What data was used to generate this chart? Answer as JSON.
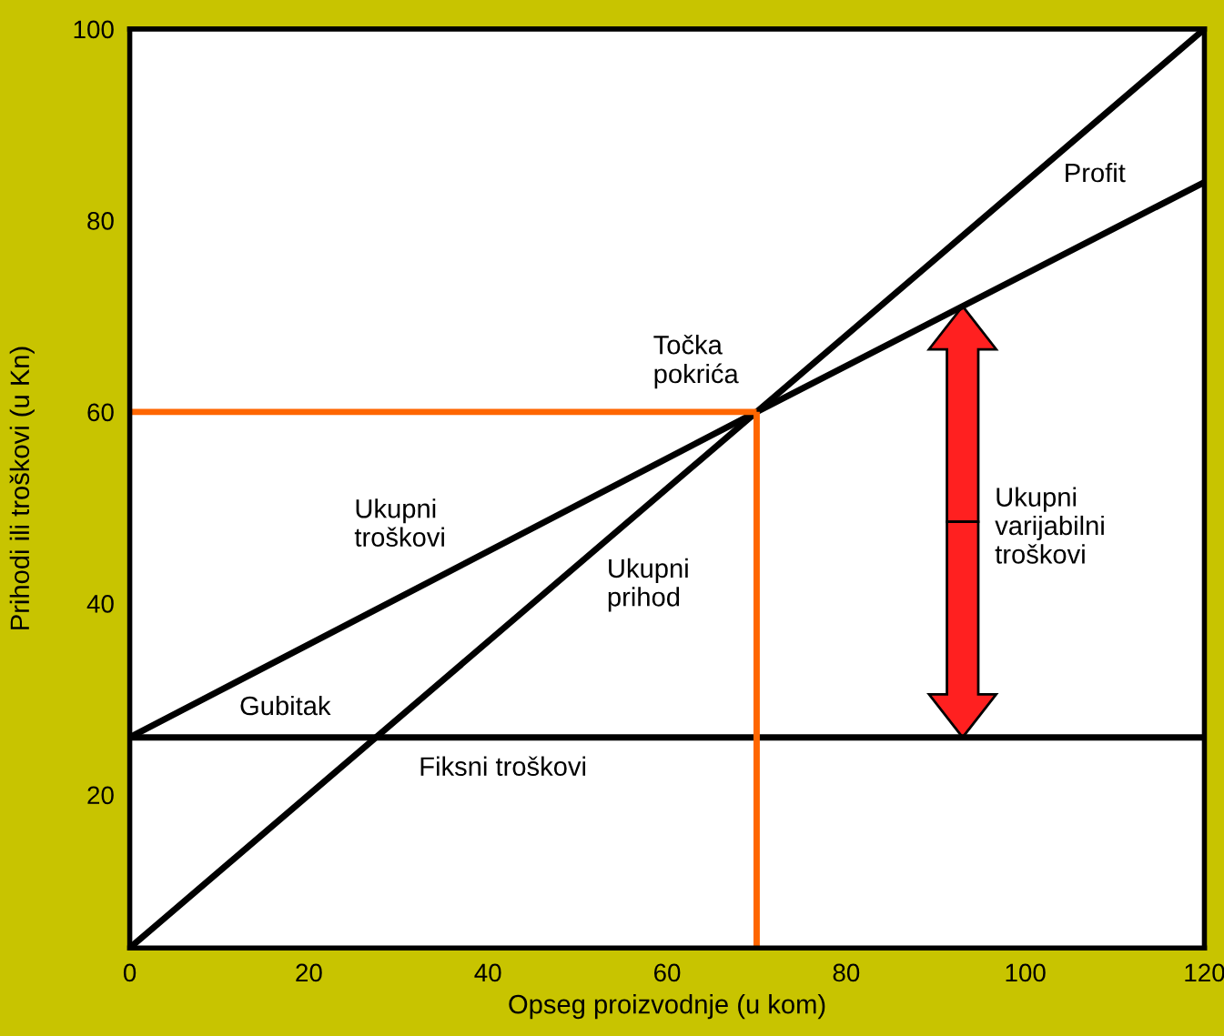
{
  "chart_data": {
    "type": "line",
    "xlabel": "Opseg proizvodnje (u kom)",
    "ylabel": "Prihodi ili troškovi (u Kn)",
    "xlim": [
      0,
      120
    ],
    "ylim": [
      4,
      100
    ],
    "xticks": [
      0,
      20,
      40,
      60,
      80,
      100,
      120
    ],
    "yticks": [
      20,
      40,
      60,
      80,
      100
    ],
    "grid": false,
    "legend": false,
    "marker": "none",
    "line_style": "solid",
    "series": [
      {
        "name": "Ukupni\nprihod",
        "color": "#000000",
        "x": [
          0,
          70,
          120
        ],
        "values": [
          4,
          60,
          100
        ]
      },
      {
        "name": "Ukupni\ntroškovi",
        "color": "#000000",
        "x": [
          0,
          70,
          120
        ],
        "values": [
          26,
          60,
          84
        ]
      },
      {
        "name": "Fiksni troškovi",
        "color": "#000000",
        "x": [
          0,
          120
        ],
        "values": [
          26,
          26
        ]
      },
      {
        "color": "#ff6600",
        "x": [
          0,
          70
        ],
        "values": [
          60,
          60
        ]
      },
      {
        "color": "#ff6600",
        "x": [
          70,
          70
        ],
        "values": [
          4,
          60
        ]
      }
    ],
    "annotations": [
      "Profit",
      "Točka\npokrića",
      "Gubitak",
      "Ukupni\nvarijabilni\ntroškovi"
    ]
  }
}
